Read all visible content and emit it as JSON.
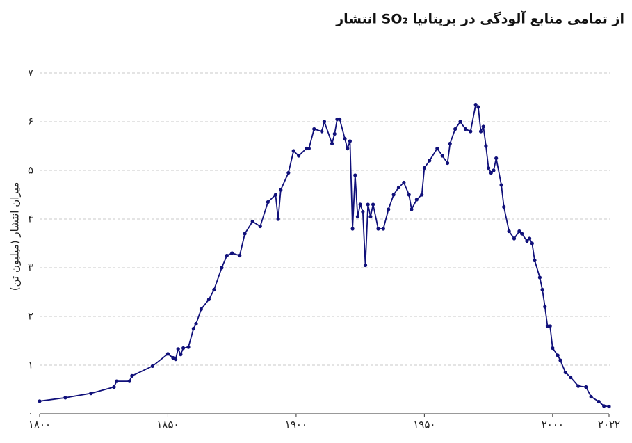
{
  "chart_data": {
    "type": "line",
    "title": "انتشار SO₂ از تمامی منابع آلودگی در بریتانیا",
    "ylabel": "میزان انتشار (میلیون تن)",
    "x": [
      1800,
      1810,
      1820,
      1829,
      1830,
      1835,
      1836,
      1844,
      1850,
      1852,
      1853,
      1854,
      1855,
      1856,
      1858,
      1860,
      1861,
      1863,
      1866,
      1868,
      1871,
      1873,
      1875,
      1878,
      1880,
      1883,
      1886,
      1889,
      1892,
      1893,
      1894,
      1897,
      1899,
      1901,
      1904,
      1905,
      1907,
      1910,
      1911,
      1914,
      1915,
      1916,
      1917,
      1919,
      1920,
      1921,
      1922,
      1923,
      1924,
      1925,
      1926,
      1927,
      1928,
      1929,
      1930,
      1932,
      1934,
      1936,
      1938,
      1940,
      1942,
      1944,
      1945,
      1947,
      1949,
      1950,
      1952,
      1955,
      1957,
      1959,
      1960,
      1962,
      1964,
      1966,
      1968,
      1970,
      1971,
      1972,
      1973,
      1974,
      1975,
      1976,
      1977,
      1978,
      1980,
      1981,
      1983,
      1985,
      1987,
      1988,
      1990,
      1991,
      1992,
      1993,
      1995,
      1996,
      1997,
      1998,
      1999,
      2000,
      2002,
      2003,
      2005,
      2007,
      2010,
      2013,
      2015,
      2018,
      2020,
      2022
    ],
    "series": [
      {
        "name": "SO₂",
        "color": "#10107a",
        "values": [
          0.26,
          0.33,
          0.42,
          0.55,
          0.67,
          0.67,
          0.78,
          0.98,
          1.23,
          1.15,
          1.12,
          1.33,
          1.22,
          1.35,
          1.37,
          1.75,
          1.85,
          2.15,
          2.35,
          2.55,
          3.0,
          3.25,
          3.3,
          3.25,
          3.7,
          3.95,
          3.85,
          4.35,
          4.5,
          4.0,
          4.6,
          4.95,
          5.4,
          5.3,
          5.45,
          5.45,
          5.85,
          5.8,
          6.0,
          5.55,
          5.75,
          6.05,
          6.05,
          5.65,
          5.45,
          5.6,
          3.8,
          4.9,
          4.05,
          4.3,
          4.15,
          3.05,
          4.3,
          4.05,
          4.3,
          3.8,
          3.8,
          4.2,
          4.5,
          4.65,
          4.75,
          4.5,
          4.2,
          4.4,
          4.5,
          5.05,
          5.2,
          5.45,
          5.3,
          5.15,
          5.55,
          5.85,
          6.0,
          5.85,
          5.8,
          6.35,
          6.3,
          5.8,
          5.9,
          5.5,
          5.05,
          4.95,
          5.0,
          5.25,
          4.7,
          4.25,
          3.75,
          3.6,
          3.75,
          3.7,
          3.55,
          3.6,
          3.5,
          3.15,
          2.8,
          2.55,
          2.2,
          1.8,
          1.8,
          1.35,
          1.2,
          1.1,
          0.85,
          0.75,
          0.57,
          0.55,
          0.35,
          0.25,
          0.16,
          0.15
        ]
      }
    ],
    "xlim": [
      1800,
      2022
    ],
    "xticks": [
      {
        "value": 1800,
        "label": "۱۸۰۰"
      },
      {
        "value": 1850,
        "label": "۱۸۵۰"
      },
      {
        "value": 1900,
        "label": "۱۹۰۰"
      },
      {
        "value": 1950,
        "label": "۱۹۵۰"
      },
      {
        "value": 2000,
        "label": "۲۰۰۰"
      },
      {
        "value": 2022,
        "label": "۲۰۲۲"
      }
    ],
    "ylim": [
      0,
      7
    ],
    "yticks": [
      {
        "value": 0,
        "label": "۰"
      },
      {
        "value": 1,
        "label": "۱"
      },
      {
        "value": 2,
        "label": "۲"
      },
      {
        "value": 3,
        "label": "۳"
      },
      {
        "value": 4,
        "label": "۴"
      },
      {
        "value": 5,
        "label": "۵"
      },
      {
        "value": 6,
        "label": "۶"
      },
      {
        "value": 7,
        "label": "۷"
      }
    ],
    "grid": true
  }
}
